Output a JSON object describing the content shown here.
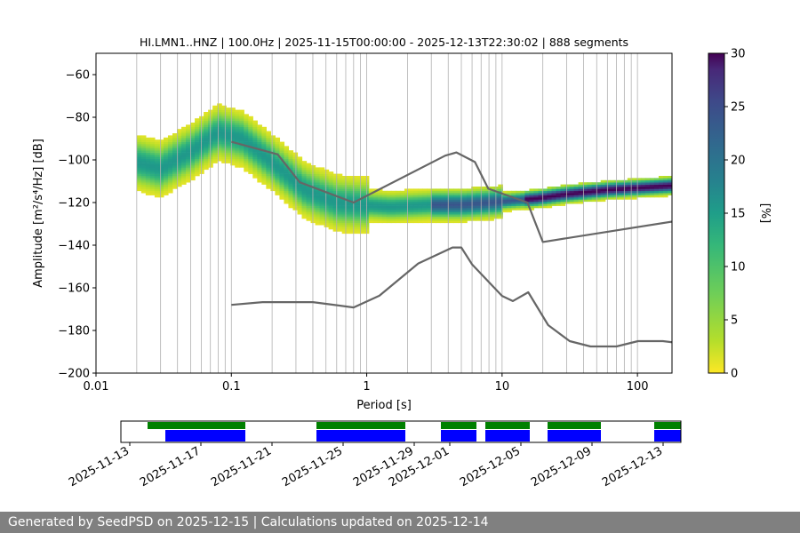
{
  "footer": {
    "text": "Generated by SeedPSD on 2025-12-15 | Calculations updated on 2025-12-14"
  },
  "chart_data": {
    "type": "heatmap",
    "title": "HI.LMN1..HNZ | 100.0Hz | 2025-11-15T00:00:00 - 2025-12-13T22:30:02 | 888 segments",
    "xlabel": "Period [s]",
    "ylabel": "Amplitude [m²/s⁴/Hz] [dB]",
    "x_scale": "log",
    "xlim": [
      0.01,
      180
    ],
    "ylim": [
      -200,
      -50
    ],
    "x_ticks": [
      0.01,
      0.1,
      1,
      10,
      100
    ],
    "x_tick_labels": [
      "0.01",
      "0.1",
      "1",
      "10",
      "100"
    ],
    "y_ticks": [
      -200,
      -180,
      -160,
      -140,
      -120,
      -100,
      -80,
      -60
    ],
    "y_tick_labels": [
      "−200",
      "−180",
      "−160",
      "−140",
      "−120",
      "−100",
      "−80",
      "−60"
    ],
    "grid": true,
    "colorbar": {
      "label": "[%]",
      "min": 0,
      "max": 30,
      "ticks": [
        0,
        5,
        10,
        15,
        20,
        25,
        30
      ],
      "colormap": "viridis_r"
    },
    "psd_mode_curve": {
      "period": [
        0.02,
        0.03,
        0.05,
        0.08,
        0.12,
        0.2,
        0.35,
        0.6,
        0.9,
        1.5,
        3,
        5,
        8,
        12,
        18,
        30,
        60,
        180
      ],
      "db": [
        -101,
        -104,
        -96,
        -87,
        -90,
        -101,
        -114,
        -120,
        -121,
        -122,
        -121,
        -121,
        -120,
        -119,
        -118,
        -116,
        -114,
        -112
      ]
    },
    "high_noise_model": {
      "period": [
        0.1,
        0.22,
        0.32,
        0.8,
        3.8,
        4.6,
        6.3,
        7.9,
        15.4,
        20,
        354.8
      ],
      "db": [
        -91.5,
        -97.4,
        -110.5,
        -120,
        -98,
        -96.5,
        -101,
        -113.5,
        -120,
        -138.5,
        -126
      ]
    },
    "low_noise_model": {
      "period": [
        0.1,
        0.17,
        0.4,
        0.8,
        1.24,
        2.4,
        4.3,
        5,
        6,
        10,
        12,
        15.6,
        21.9,
        31.6,
        45,
        70,
        101,
        154,
        328,
        600
      ],
      "db": [
        -168,
        -166.7,
        -166.7,
        -169.2,
        -163.7,
        -148.6,
        -141.1,
        -141.1,
        -149,
        -163.8,
        -166.2,
        -162.1,
        -177.5,
        -185,
        -187.5,
        -187.5,
        -185,
        -185,
        -187.5,
        -187.5
      ]
    },
    "data_availability": {
      "date_ticks": [
        "2025-11-13",
        "2025-11-17",
        "2025-11-21",
        "2025-11-25",
        "2025-11-29",
        "2025-12-01",
        "2025-12-05",
        "2025-12-09",
        "2025-12-13"
      ],
      "xlim": [
        "2025-11-12T12:00",
        "2025-12-14T00:00"
      ],
      "green_segments": [
        [
          "2025-11-14T00:00",
          "2025-11-19T12:00"
        ],
        [
          "2025-11-23T12:00",
          "2025-11-28T12:00"
        ],
        [
          "2025-11-30T12:00",
          "2025-12-02T12:00"
        ],
        [
          "2025-12-03T00:00",
          "2025-12-05T12:00"
        ],
        [
          "2025-12-06T12:00",
          "2025-12-09T12:00"
        ],
        [
          "2025-12-12T12:00",
          "2025-12-14T12:00"
        ]
      ],
      "blue_segments": [
        [
          "2025-11-15T00:00",
          "2025-11-19T12:00"
        ],
        [
          "2025-11-23T12:00",
          "2025-11-28T12:00"
        ],
        [
          "2025-11-30T12:00",
          "2025-12-02T12:00"
        ],
        [
          "2025-12-03T00:00",
          "2025-12-05T12:00"
        ],
        [
          "2025-12-06T12:00",
          "2025-12-09T12:00"
        ],
        [
          "2025-12-12T12:00",
          "2025-12-14T12:00"
        ]
      ],
      "colors": {
        "green": "#008000",
        "blue": "#0000ff"
      }
    },
    "colors": {
      "noise_model": "#666666",
      "grid": "#b0b0b0"
    }
  }
}
